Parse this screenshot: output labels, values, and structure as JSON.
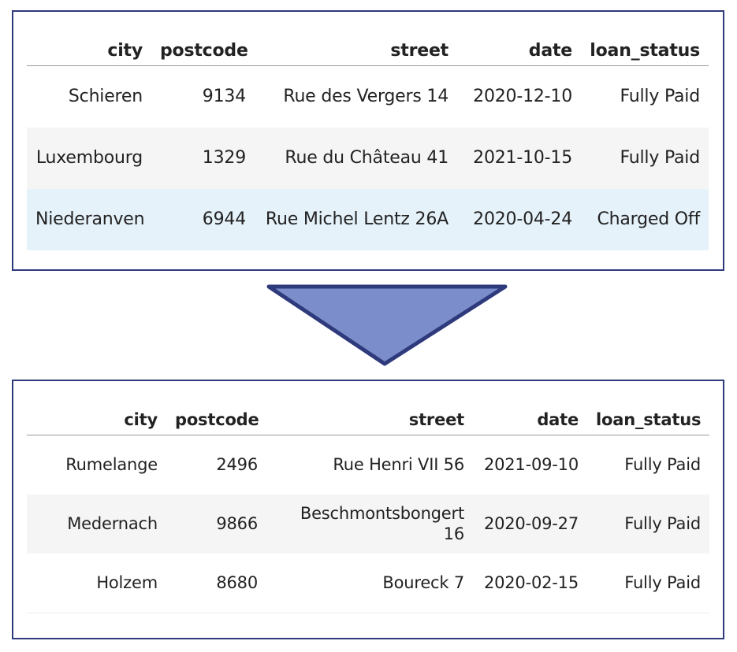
{
  "before_table": {
    "columns": [
      "city",
      "postcode",
      "street",
      "date",
      "loan_status"
    ],
    "rows": [
      [
        "Schieren",
        "9134",
        "Rue des Vergers 14",
        "2020-12-10",
        "Fully Paid"
      ],
      [
        "Luxembourg",
        "1329",
        "Rue du Château 41",
        "2021-10-15",
        "Fully Paid"
      ],
      [
        "Niederanven",
        "6944",
        "Rue Michel Lentz 26A",
        "2020-04-24",
        "Charged Off"
      ]
    ]
  },
  "after_table": {
    "columns": [
      "city",
      "postcode",
      "street",
      "date",
      "loan_status"
    ],
    "rows": [
      [
        "Rumelange",
        "2496",
        "Rue Henri VII 56",
        "2021-09-10",
        "Fully Paid"
      ],
      [
        "Medernach",
        "9866",
        "Beschmontsbongert 16",
        "2020-09-27",
        "Fully Paid"
      ],
      [
        "Holzem",
        "8680",
        "Boureck 7",
        "2020-02-15",
        "Fully Paid"
      ]
    ]
  },
  "colors": {
    "panel_border": "#2e3a7c",
    "arrow_fill": "#7b8ecb",
    "arrow_stroke": "#2e3a7c",
    "highlight_row": "#e5f2fa",
    "striped_row": "#f5f5f5"
  },
  "icons": {
    "transform_arrow": "down-triangle-arrow-icon"
  }
}
